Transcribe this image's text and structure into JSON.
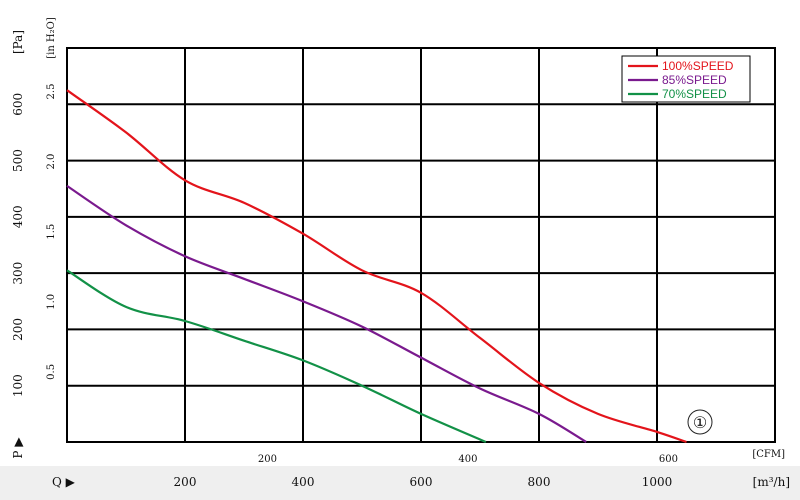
{
  "chart_data": {
    "type": "line",
    "title": "",
    "xlabel_m3h": "[m³/h]",
    "xlabel_cfm": "[CFM]",
    "ylabel_pa": "[Pa]",
    "ylabel_inh2o": "[in H₂O]",
    "q_marker": "Q ▶",
    "p_marker": "P ▶",
    "badge": "①",
    "x_ticks_m3h": [
      "200",
      "400",
      "600",
      "800",
      "1000"
    ],
    "x_ticks_m3h_values": [
      200,
      400,
      600,
      800,
      1000
    ],
    "x_ticks_cfm": [
      "200",
      "400",
      "600"
    ],
    "x_ticks_cfm_values": [
      200,
      400,
      600
    ],
    "y_ticks_pa": [
      "100",
      "200",
      "300",
      "400",
      "500",
      "600"
    ],
    "y_ticks_pa_values": [
      100,
      200,
      300,
      400,
      500,
      600
    ],
    "y_ticks_in": [
      "0.5",
      "1.0",
      "1.5",
      "2.0",
      "2.5"
    ],
    "y_ticks_in_values": [
      0.5,
      1.0,
      1.5,
      2.0,
      2.5
    ],
    "xlim_m3h": [
      0,
      1200
    ],
    "ylim_pa": [
      0,
      700
    ],
    "grid": true,
    "legend_position": "top-right",
    "series": [
      {
        "name": "100%SPEED",
        "color": "#e3141b",
        "x": [
          0,
          100,
          200,
          300,
          400,
          500,
          600,
          700,
          800,
          900,
          1000,
          1050
        ],
        "y": [
          625,
          550,
          465,
          425,
          370,
          305,
          265,
          185,
          105,
          50,
          18,
          0
        ]
      },
      {
        "name": "85%SPEED",
        "color": "#7a1a8e",
        "x": [
          0,
          100,
          200,
          300,
          400,
          500,
          600,
          700,
          800,
          880
        ],
        "y": [
          455,
          385,
          330,
          290,
          250,
          205,
          150,
          95,
          50,
          0
        ]
      },
      {
        "name": "70%SPEED",
        "color": "#129147",
        "x": [
          0,
          100,
          200,
          300,
          400,
          500,
          600,
          710
        ],
        "y": [
          305,
          240,
          215,
          180,
          145,
          100,
          50,
          0
        ]
      }
    ]
  }
}
